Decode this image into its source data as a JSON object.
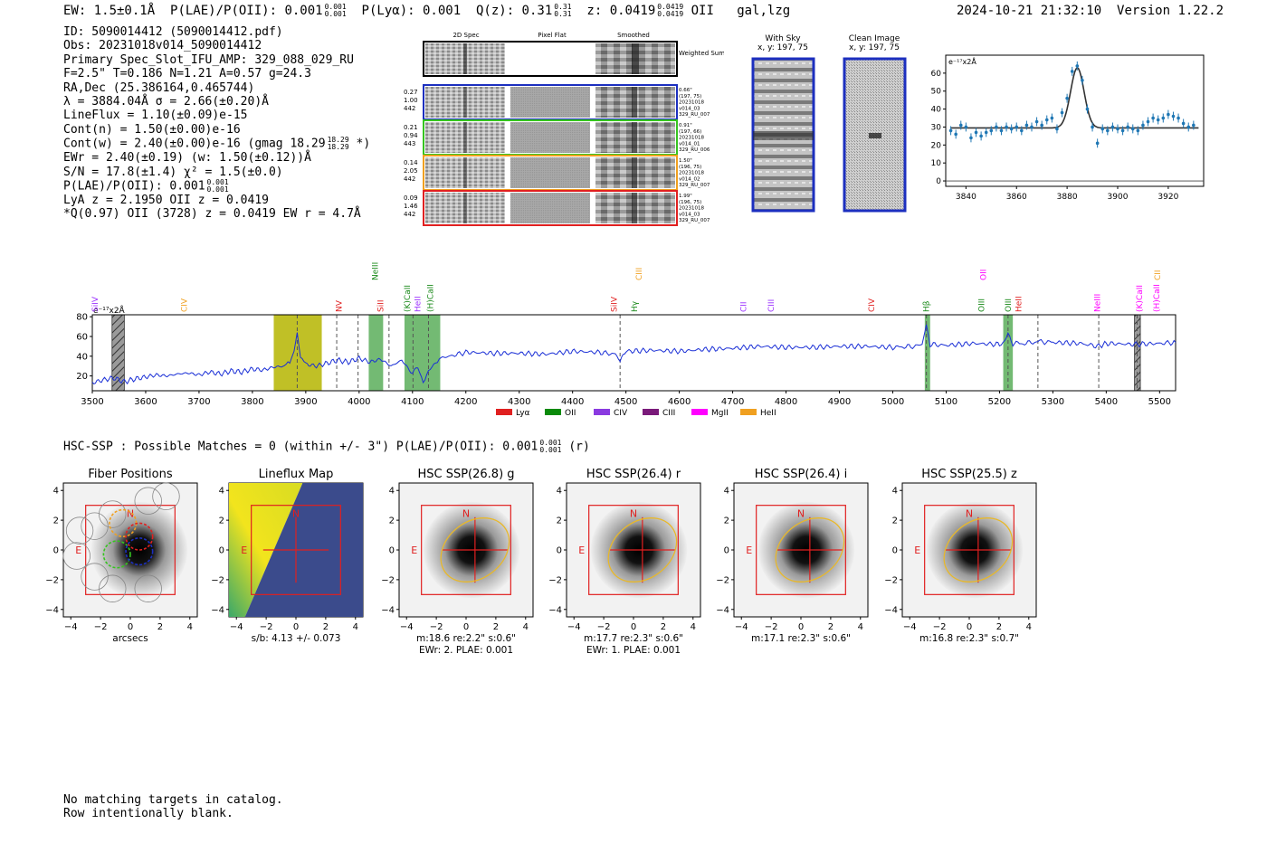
{
  "header": {
    "ew": "EW: 1.5±0.1Å",
    "plae_label": "P(LAE)/P(OII): 0.001",
    "plae_frac": [
      "0.001",
      "0.001"
    ],
    "plya": "P(Lyα): 0.001",
    "q_label": "Q(z): 0.31",
    "q_frac": [
      "0.31",
      "0.31"
    ],
    "z_label": "z: 0.0419",
    "z_frac": [
      "0.0419",
      "0.0419"
    ],
    "z_line": "OII",
    "classes": "gal,lzg",
    "timestamp": "2024-10-21 21:32:10",
    "version": "Version 1.22.2"
  },
  "info": {
    "id": "ID: 5090014412 (5090014412.pdf)",
    "obs": "Obs: 20231018v014_5090014412",
    "primary": "Primary Spec_Slot_IFU_AMP: 329_088_029_RU",
    "fstats": "F=2.5\"  T=0.186  N=1.21  A=0.57  g=24.3",
    "radec": "RA,Dec (25.386164,0.465744)",
    "lambda": "λ = 3884.04Å  σ = 2.66(±0.20)Å",
    "lineflux": "LineFlux = 1.10(±0.09)e-15",
    "contn": "Cont(n) = 1.50(±0.00)e-16",
    "contw": "Cont(w) = 2.40(±0.00)e-16 (gmag 18.29",
    "contw_frac": [
      "18.29",
      "18.29"
    ],
    "contw_end": "*)",
    "ewr": "EWr = 2.40(±0.19) (w: 1.50(±0.12))Å",
    "sn": "S/N = 17.8(±1.4)  χ² = 1.5(±0.0)",
    "plae": "P(LAE)/P(OII): 0.001",
    "plae_frac": [
      "0.001",
      "0.001"
    ],
    "lya": "LyA z = 2.1950  OII z = 0.0419",
    "q": "*Q(0.97) OII (3728) z = 0.0419  EW r = 4.7Å"
  },
  "cutouts": {
    "headers": [
      "2D Spec",
      "Pixel Flat",
      "Smoothed"
    ],
    "weighted": "Weighted Sum",
    "rows": [
      {
        "left": [
          "0.27",
          "1.00",
          "442"
        ],
        "right": [
          "0.66\"",
          "(197, 75)",
          "20231018",
          "v014_03",
          "329_RU_007"
        ],
        "color": "#1c2fbf"
      },
      {
        "left": [
          "0.21",
          "0.94",
          "443"
        ],
        "right": [
          "0.91\"",
          "(197, 66)",
          "20231018",
          "v014_01",
          "329_RU_006"
        ],
        "color": "#35c41f"
      },
      {
        "left": [
          "0.14",
          "2.05",
          "442"
        ],
        "right": [
          "1.50\"",
          "(196, 75)",
          "20231018",
          "v014_02",
          "329_RU_007"
        ],
        "color": "#f0a020"
      },
      {
        "left": [
          "0.09",
          "1.46",
          "442"
        ],
        "right": [
          "1.99\"",
          "(196, 75)",
          "20231018",
          "v014_03",
          "329_RU_007"
        ],
        "color": "#e02020"
      }
    ],
    "with_sky": [
      "With Sky",
      "x, y: 197, 75"
    ],
    "clean": [
      "Clean Image",
      "x, y: 197, 75"
    ]
  },
  "chart_data": [
    {
      "type": "scatter",
      "title": "",
      "units_label": "e⁻¹⁷x2Å",
      "xlim": [
        3832,
        3934
      ],
      "ylim": [
        -3,
        70
      ],
      "xticks": [
        3840,
        3860,
        3880,
        3900,
        3920
      ],
      "yticks": [
        0,
        10,
        20,
        30,
        40,
        50,
        60
      ],
      "points": {
        "x": [
          3834,
          3836,
          3838,
          3840,
          3842,
          3844,
          3846,
          3848,
          3850,
          3852,
          3854,
          3856,
          3858,
          3860,
          3862,
          3864,
          3866,
          3868,
          3870,
          3872,
          3874,
          3876,
          3878,
          3880,
          3882,
          3884,
          3886,
          3888,
          3890,
          3892,
          3894,
          3896,
          3898,
          3900,
          3902,
          3904,
          3906,
          3908,
          3910,
          3912,
          3914,
          3916,
          3918,
          3920,
          3922,
          3924,
          3926,
          3928,
          3930
        ],
        "y": [
          28,
          26,
          31,
          30,
          24,
          27,
          25,
          27,
          28,
          30,
          28,
          30,
          29,
          30,
          28,
          31,
          30,
          33,
          31,
          34,
          35,
          29,
          38,
          46,
          61,
          64,
          56,
          40,
          30,
          21,
          29,
          28,
          30,
          29,
          28,
          30,
          29,
          28,
          31,
          33,
          35,
          34,
          35,
          37,
          36,
          35,
          32,
          30,
          31
        ]
      },
      "fit": {
        "center": 3884.04,
        "sigma": 2.66,
        "continuum": 29.5,
        "amplitude": 33.5
      }
    },
    {
      "type": "line",
      "units_label": "e⁻¹⁷x2Å",
      "xlim": [
        3500,
        5530
      ],
      "ylim": [
        5,
        82
      ],
      "xticks": [
        3500,
        3600,
        3700,
        3800,
        3900,
        4000,
        4100,
        4200,
        4300,
        4400,
        4500,
        4600,
        4700,
        4800,
        4900,
        5000,
        5100,
        5200,
        5300,
        5400,
        5500
      ],
      "yticks": [
        20,
        40,
        60,
        80
      ],
      "highlight_spans": [
        {
          "x0": 3840,
          "x1": 3930,
          "color": "#b5b500"
        },
        {
          "x0": 4018,
          "x1": 4045,
          "color": "#5aae5a"
        },
        {
          "x0": 4085,
          "x1": 4152,
          "color": "#5aae5a"
        },
        {
          "x0": 5060,
          "x1": 5070,
          "color": "#5aae5a"
        },
        {
          "x0": 5207,
          "x1": 5225,
          "color": "#5aae5a"
        }
      ],
      "masked_spans": [
        {
          "x0": 3537,
          "x1": 3560
        },
        {
          "x0": 5453,
          "x1": 5464
        }
      ],
      "dashed_lines": [
        3884,
        3958,
        3998,
        4056,
        4101,
        4130,
        4489,
        5063,
        5216,
        5272,
        5386,
        5458
      ],
      "line_labels": [
        {
          "x": 3505,
          "text": "SiIV",
          "color": "#9b30ff"
        },
        {
          "x": 3672,
          "text": "CIV",
          "color": "#f0a020"
        },
        {
          "x": 3962,
          "text": "NV",
          "color": "#e02020"
        },
        {
          "x": 4040,
          "text": "SiII",
          "color": "#e02020"
        },
        {
          "x": 4030,
          "text": "NeIII",
          "color": "#1a8a1a",
          "high": true
        },
        {
          "x": 4090,
          "text": "(K)CaII",
          "color": "#1a8a1a"
        },
        {
          "x": 4110,
          "text": "HeII",
          "color": "#9b30ff"
        },
        {
          "x": 4133,
          "text": "(H)CaII",
          "color": "#1a8a1a"
        },
        {
          "x": 4478,
          "text": "SiIV",
          "color": "#e02020"
        },
        {
          "x": 4516,
          "text": "Hγ",
          "color": "#1a8a1a"
        },
        {
          "x": 4524,
          "text": "CIII",
          "color": "#f0a020",
          "high": true
        },
        {
          "x": 4720,
          "text": "CII",
          "color": "#9b30ff"
        },
        {
          "x": 4772,
          "text": "CIII",
          "color": "#9b30ff"
        },
        {
          "x": 4960,
          "text": "CIV",
          "color": "#e02020"
        },
        {
          "x": 5063,
          "text": "Hβ",
          "color": "#1a8a1a"
        },
        {
          "x": 5170,
          "text": "OII",
          "color": "#ff00ff",
          "high": true
        },
        {
          "x": 5166,
          "text": "OIII",
          "color": "#1a8a1a"
        },
        {
          "x": 5216,
          "text": "OIII",
          "color": "#1a8a1a"
        },
        {
          "x": 5236,
          "text": "HeII",
          "color": "#e02020"
        },
        {
          "x": 5383,
          "text": "NeIII",
          "color": "#ff00ff"
        },
        {
          "x": 5462,
          "text": "(K)CaII",
          "color": "#ff00ff"
        },
        {
          "x": 5494,
          "text": "(H)CaII",
          "color": "#ff00ff"
        },
        {
          "x": 5496,
          "text": "CII",
          "color": "#f0a020",
          "high": true
        }
      ],
      "legend": [
        {
          "label": "Lyα",
          "color": "#e02020"
        },
        {
          "label": "OII",
          "color": "#0a8a0a"
        },
        {
          "label": "CIV",
          "color": "#8a3ae0"
        },
        {
          "label": "CIII",
          "color": "#7a1a7a"
        },
        {
          "label": "MgII",
          "color": "#ff00ff"
        },
        {
          "label": "HeII",
          "color": "#f0a020"
        }
      ],
      "series": {
        "x": [
          3500,
          3520,
          3540,
          3560,
          3580,
          3600,
          3620,
          3640,
          3660,
          3680,
          3700,
          3720,
          3740,
          3760,
          3780,
          3800,
          3820,
          3840,
          3860,
          3870,
          3878,
          3884,
          3890,
          3900,
          3920,
          3940,
          3960,
          3980,
          4000,
          4020,
          4040,
          4060,
          4080,
          4100,
          4110,
          4120,
          4130,
          4140,
          4150,
          4170,
          4200,
          4250,
          4300,
          4350,
          4400,
          4450,
          4480,
          4489,
          4500,
          4550,
          4600,
          4650,
          4700,
          4750,
          4800,
          4850,
          4900,
          4950,
          5000,
          5040,
          5055,
          5063,
          5070,
          5100,
          5150,
          5200,
          5210,
          5216,
          5225,
          5250,
          5272,
          5300,
          5350,
          5386,
          5400,
          5450,
          5500,
          5530
        ],
        "y": [
          13,
          16,
          18,
          14,
          17,
          19,
          21,
          20,
          22,
          23,
          21,
          24,
          22,
          25,
          24,
          27,
          26,
          29,
          30,
          33,
          45,
          64,
          38,
          32,
          30,
          33,
          36,
          34,
          38,
          34,
          37,
          30,
          36,
          22,
          29,
          15,
          24,
          30,
          38,
          40,
          44,
          43,
          43,
          42,
          45,
          44,
          42,
          36,
          45,
          46,
          45,
          47,
          48,
          50,
          49,
          49,
          50,
          50,
          49,
          50,
          52,
          72,
          52,
          51,
          53,
          52,
          56,
          62,
          53,
          53,
          55,
          54,
          53,
          50,
          53,
          52,
          53,
          54
        ]
      }
    }
  ],
  "hsc": {
    "summary": "HSC-SSP : Possible Matches = 0 (within +/- 3\")  P(LAE)/P(OII): 0.001",
    "summary_frac": [
      "0.001",
      "0.001"
    ],
    "summary_end": "(r)",
    "panels": [
      {
        "title": "Fiber Positions",
        "caption": [
          "arcsecs"
        ]
      },
      {
        "title": "Lineflux Map",
        "caption": [
          "s/b: 4.13 +/- 0.073"
        ]
      },
      {
        "title": "HSC SSP(26.8) g",
        "caption": [
          "m:18.6  re:2.2\"  s:0.6\"",
          "EWr: 2. PLAE: 0.001"
        ]
      },
      {
        "title": "HSC SSP(26.4) r",
        "caption": [
          "m:17.7  re:2.3\"  s:0.6\"",
          "EWr: 1. PLAE: 0.001"
        ]
      },
      {
        "title": "HSC SSP(26.4) i",
        "caption": [
          "m:17.1  re:2.3\"  s:0.6\""
        ]
      },
      {
        "title": "HSC SSP(25.5) z",
        "caption": [
          "m:16.8  re:2.3\"  s:0.7\""
        ]
      }
    ],
    "axis_ticks": [
      "−4",
      "−2",
      "0",
      "2",
      "4"
    ],
    "north": "N",
    "east": "E"
  },
  "footer": {
    "line1": "No matching targets in catalog.",
    "line2": "Row intentionally blank."
  }
}
